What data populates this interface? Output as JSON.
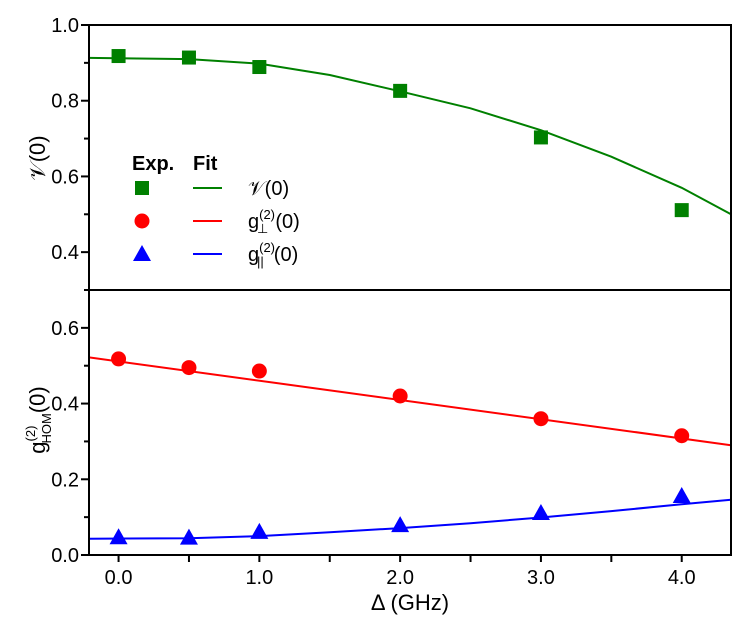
{
  "chart_data": [
    {
      "type": "scatter",
      "panel": "top",
      "title": "",
      "xlabel": "",
      "ylabel": "V(0)",
      "xlim": [
        -0.21,
        4.35
      ],
      "ylim": [
        0.3,
        1.0
      ],
      "yticks": [
        "1.0",
        "0.8",
        "0.6",
        "0.4"
      ],
      "grid": false,
      "series": [
        {
          "name": "V(0)",
          "kind": "exp",
          "marker": "square",
          "color": "#008000",
          "x": [
            0.0,
            0.5,
            1.0,
            2.0,
            3.0,
            4.0
          ],
          "y": [
            0.918,
            0.914,
            0.889,
            0.826,
            0.703,
            0.511
          ]
        },
        {
          "name": "V(0) fit",
          "kind": "fit",
          "line": "solid",
          "color": "#008000",
          "x": [
            -0.21,
            0.5,
            1.0,
            1.5,
            2.0,
            2.5,
            3.0,
            3.5,
            4.0,
            4.35
          ],
          "y": [
            0.913,
            0.91,
            0.898,
            0.868,
            0.825,
            0.78,
            0.722,
            0.652,
            0.57,
            0.5
          ]
        }
      ]
    },
    {
      "type": "scatter",
      "panel": "bottom",
      "title": "",
      "xlabel": "Δ (GHz)",
      "ylabel": "g(2)HOM(0)",
      "xlim": [
        -0.21,
        4.35
      ],
      "ylim": [
        0.0,
        0.7
      ],
      "xticks": [
        "0.0",
        "1.0",
        "2.0",
        "3.0",
        "4.0"
      ],
      "yticks": [
        "0.6",
        "0.4",
        "0.2",
        "0.0"
      ],
      "grid": false,
      "series": [
        {
          "name": "g⊥(2)(0)",
          "kind": "exp",
          "marker": "circle",
          "color": "#ff0000",
          "x": [
            0.0,
            0.5,
            1.0,
            2.0,
            3.0,
            4.0
          ],
          "y": [
            0.518,
            0.495,
            0.486,
            0.42,
            0.36,
            0.315
          ]
        },
        {
          "name": "g⊥(2)(0) fit",
          "kind": "fit",
          "line": "solid",
          "color": "#ff0000",
          "x": [
            -0.21,
            4.35
          ],
          "y": [
            0.522,
            0.29
          ]
        },
        {
          "name": "g∥(2)(0)",
          "kind": "exp",
          "marker": "triangle",
          "color": "#0000ff",
          "x": [
            0.0,
            0.5,
            1.0,
            2.0,
            3.0,
            4.0
          ],
          "y": [
            0.047,
            0.046,
            0.061,
            0.079,
            0.111,
            0.156
          ]
        },
        {
          "name": "g∥(2)(0) fit",
          "kind": "fit",
          "line": "solid",
          "color": "#0000ff",
          "x": [
            -0.21,
            0.5,
            1.0,
            1.5,
            2.0,
            2.5,
            3.0,
            3.5,
            4.0,
            4.35
          ],
          "y": [
            0.043,
            0.044,
            0.05,
            0.06,
            0.071,
            0.084,
            0.099,
            0.116,
            0.134,
            0.146
          ]
        }
      ]
    }
  ],
  "legend": {
    "exp_header": "Exp.",
    "fit_header": "Fit",
    "entries": [
      {
        "label_main": "𝒱(0)",
        "label_sup": "",
        "label_sub": "",
        "label_tail": "",
        "marker": "square",
        "color": "#008000"
      },
      {
        "label_main": "g",
        "label_sup": "(2)",
        "label_sub": "⊥",
        "label_tail": "(0)",
        "marker": "circle",
        "color": "#ff0000"
      },
      {
        "label_main": "g",
        "label_sup": "(2)",
        "label_sub": "||",
        "label_tail": "(0)",
        "marker": "triangle",
        "color": "#0000ff"
      }
    ]
  },
  "axes": {
    "top_ylabel": "𝒱(0)",
    "bottom_ylabel_main": "g",
    "bottom_ylabel_sup": "(2)",
    "bottom_ylabel_sub": "HOM",
    "bottom_ylabel_tail": "(0)",
    "xlabel": "Δ (GHz)"
  }
}
